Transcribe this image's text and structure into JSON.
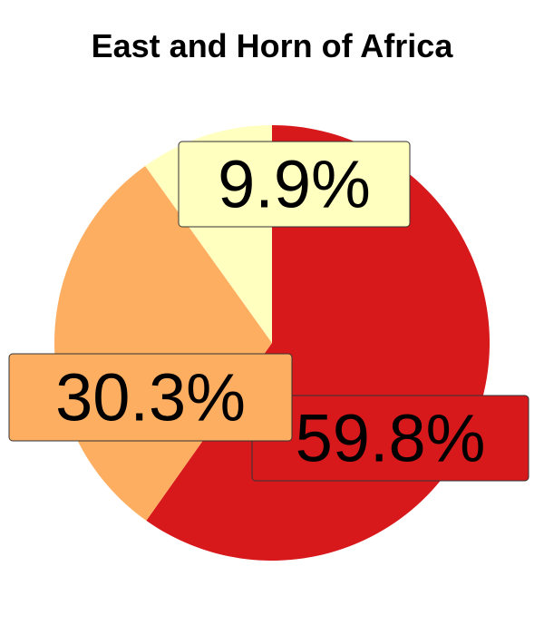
{
  "chart_data": {
    "type": "pie",
    "title": "East and Horn of Africa",
    "slices": [
      {
        "label": "59.8%",
        "value": 59.8,
        "color": "#d7191c"
      },
      {
        "label": "30.3%",
        "value": 30.3,
        "color": "#fdae61"
      },
      {
        "label": "9.9%",
        "value": 9.9,
        "color": "#ffffbf"
      }
    ]
  }
}
